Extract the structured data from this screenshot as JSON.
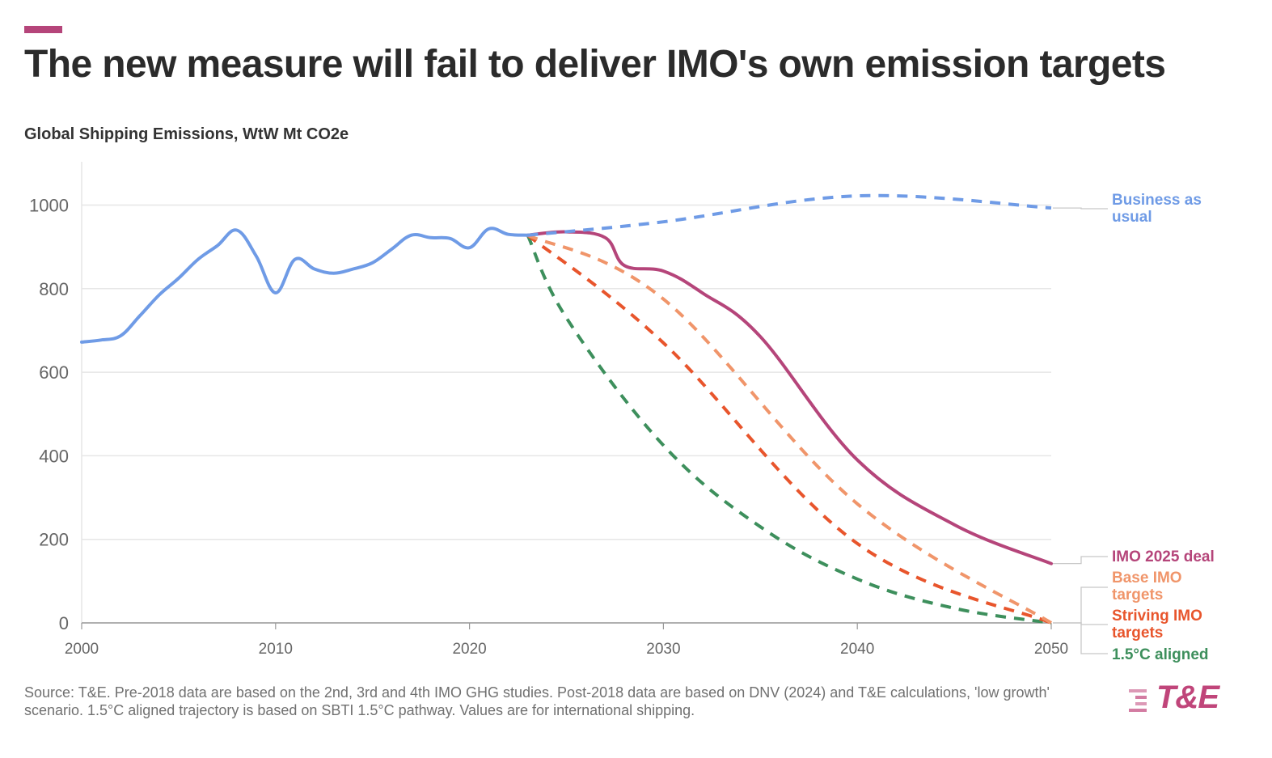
{
  "header": {
    "title": "The new measure will fail to deliver IMO's own emission targets",
    "subtitle": "Global Shipping Emissions, WtW Mt CO2e"
  },
  "footer": {
    "source": "Source: T&E. Pre-2018 data are based on the 2nd, 3rd and 4th IMO GHG studies. Post-2018 data are based on DNV (2024) and T&E calculations, 'low growth' scenario. 1.5°C aligned trajectory is based on SBTI 1.5°C pathway. Values are for international shipping.",
    "logo_text": "T&E"
  },
  "colors": {
    "accent": "#b5457a",
    "grid": "#e6e6e6",
    "axis_text": "#666666",
    "logo": "#c0457a"
  },
  "chart_data": {
    "type": "line",
    "title": "The new measure will fail to deliver IMO's own emission targets",
    "subtitle": "Global Shipping Emissions, WtW Mt CO2e",
    "xlim": [
      2000,
      2050
    ],
    "ylim": [
      0,
      1100
    ],
    "x_ticks": [
      2000,
      2010,
      2020,
      2030,
      2040,
      2050
    ],
    "y_ticks": [
      0,
      200,
      400,
      600,
      800,
      1000
    ],
    "grid": true,
    "legend": "direct labels at right end of lines",
    "series": [
      {
        "name": "Business as usual",
        "color": "#6f9be6",
        "dashed": false,
        "points": [
          [
            2000,
            672
          ],
          [
            2001,
            677
          ],
          [
            2002,
            687
          ],
          [
            2003,
            735
          ],
          [
            2004,
            785
          ],
          [
            2005,
            825
          ],
          [
            2006,
            870
          ],
          [
            2007,
            903
          ],
          [
            2008,
            940
          ],
          [
            2009,
            878
          ],
          [
            2010,
            790
          ],
          [
            2011,
            870
          ],
          [
            2012,
            847
          ],
          [
            2013,
            837
          ],
          [
            2014,
            847
          ],
          [
            2015,
            862
          ],
          [
            2016,
            895
          ],
          [
            2017,
            928
          ],
          [
            2018,
            922
          ],
          [
            2019,
            920
          ],
          [
            2020,
            898
          ],
          [
            2021,
            943
          ],
          [
            2022,
            930
          ],
          [
            2023,
            928
          ]
        ]
      },
      {
        "name": "Business as usual",
        "label": "Business as usual",
        "color": "#6f9be6",
        "dashed": true,
        "points": [
          [
            2023,
            928
          ],
          [
            2030,
            960
          ],
          [
            2040,
            1022
          ],
          [
            2050,
            993
          ]
        ]
      },
      {
        "name": "IMO 2025 deal",
        "label": "IMO 2025 deal",
        "color": "#b5457a",
        "dashed": false,
        "points": [
          [
            2023,
            928
          ],
          [
            2025,
            936
          ],
          [
            2027,
            922
          ],
          [
            2028,
            855
          ],
          [
            2030,
            842
          ],
          [
            2032,
            790
          ],
          [
            2035,
            685
          ],
          [
            2040,
            390
          ],
          [
            2045,
            235
          ],
          [
            2050,
            142
          ]
        ]
      },
      {
        "name": "Base IMO targets",
        "label": "Base IMO targets",
        "color": "#f0956a",
        "dashed": true,
        "points": [
          [
            2023,
            928
          ],
          [
            2030,
            775
          ],
          [
            2040,
            285
          ],
          [
            2050,
            0
          ]
        ]
      },
      {
        "name": "Striving IMO targets",
        "label": "Striving IMO targets",
        "color": "#e8552c",
        "dashed": true,
        "points": [
          [
            2023,
            928
          ],
          [
            2030,
            670
          ],
          [
            2040,
            190
          ],
          [
            2050,
            0
          ]
        ]
      },
      {
        "name": "1.5°C aligned",
        "label": "1.5°C aligned",
        "color": "#3d8f5c",
        "dashed": true,
        "points": [
          [
            2023,
            928
          ],
          [
            2025,
            730
          ],
          [
            2030,
            425
          ],
          [
            2035,
            230
          ],
          [
            2040,
            105
          ],
          [
            2045,
            35
          ],
          [
            2050,
            0
          ]
        ]
      }
    ],
    "end_labels": [
      {
        "text_lines": [
          "Business as",
          "usual"
        ],
        "color": "#6f9be6"
      },
      {
        "text_lines": [
          "IMO 2025 deal"
        ],
        "color": "#b5457a"
      },
      {
        "text_lines": [
          "Base IMO",
          "targets"
        ],
        "color": "#f0956a"
      },
      {
        "text_lines": [
          "Striving IMO",
          "targets"
        ],
        "color": "#e8552c"
      },
      {
        "text_lines": [
          "1.5°C aligned"
        ],
        "color": "#3d8f5c"
      }
    ]
  }
}
